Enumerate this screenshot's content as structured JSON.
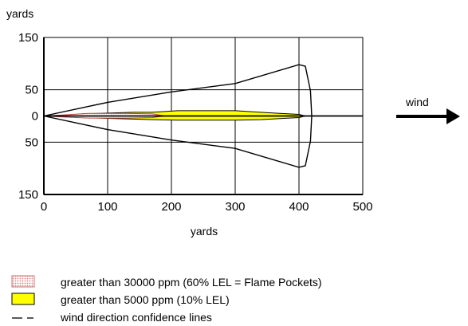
{
  "chart_data": {
    "type": "area",
    "title": "",
    "ylabel": "yards",
    "xlabel": "yards",
    "xlim": [
      0,
      500
    ],
    "ylim": [
      -150,
      150
    ],
    "x_ticks": [
      "0",
      "100",
      "200",
      "300",
      "400",
      "500"
    ],
    "y_ticks": [
      {
        "value": 150,
        "label": "150"
      },
      {
        "value": 50,
        "label": "50"
      },
      {
        "value": 0,
        "label": "0"
      },
      {
        "value": -50,
        "label": "50"
      },
      {
        "value": -150,
        "label": "150"
      }
    ],
    "grid": true,
    "wind_label": "wind",
    "series": [
      {
        "name": "wind direction confidence lines",
        "type": "outline",
        "color": "#000000",
        "upper": [
          [
            0,
            0
          ],
          [
            100,
            26
          ],
          [
            200,
            46
          ],
          [
            300,
            62
          ],
          [
            400,
            98
          ],
          [
            410,
            95
          ],
          [
            418,
            48
          ],
          [
            420,
            0
          ]
        ],
        "lower": [
          [
            0,
            0
          ],
          [
            100,
            -26
          ],
          [
            200,
            -46
          ],
          [
            300,
            -62
          ],
          [
            400,
            -98
          ],
          [
            410,
            -95
          ],
          [
            418,
            -48
          ],
          [
            420,
            0
          ]
        ]
      },
      {
        "name": "greater than 5000 ppm (10% LEL)",
        "type": "area",
        "color": "#ffff00",
        "points": [
          [
            0,
            0
          ],
          [
            40,
            2
          ],
          [
            60,
            4
          ],
          [
            140,
            7
          ],
          [
            170,
            7
          ],
          [
            210,
            10
          ],
          [
            300,
            10
          ],
          [
            340,
            7
          ],
          [
            370,
            5
          ],
          [
            400,
            3
          ],
          [
            410,
            0
          ],
          [
            400,
            -3
          ],
          [
            370,
            -5
          ],
          [
            340,
            -7
          ],
          [
            300,
            -8
          ],
          [
            210,
            -8
          ],
          [
            170,
            -7
          ],
          [
            140,
            -6
          ],
          [
            60,
            -3
          ],
          [
            40,
            -2
          ]
        ]
      },
      {
        "name": "greater than 30000 ppm (60% LEL = Flame Pockets)",
        "type": "area",
        "color": "#ffb0b0",
        "points": [
          [
            0,
            0
          ],
          [
            30,
            2
          ],
          [
            70,
            5
          ],
          [
            130,
            5
          ],
          [
            170,
            4
          ],
          [
            190,
            0
          ],
          [
            170,
            -3
          ],
          [
            130,
            -4
          ],
          [
            70,
            -4
          ],
          [
            30,
            -2
          ]
        ]
      },
      {
        "name": "centerline",
        "type": "line",
        "color": "#000000",
        "points": [
          [
            0,
            0
          ],
          [
            500,
            0
          ]
        ]
      }
    ]
  },
  "legend": [
    {
      "label": "greater than 30000 ppm (60% LEL = Flame Pockets)",
      "swatch": "dotted-pink",
      "icon": "dotted-pink-swatch"
    },
    {
      "label": "greater than 5000 ppm (10% LEL)",
      "swatch": "yellow",
      "icon": "yellow-swatch"
    },
    {
      "label": "wind direction confidence lines",
      "swatch": "dash",
      "icon": "dash-line-swatch"
    }
  ]
}
